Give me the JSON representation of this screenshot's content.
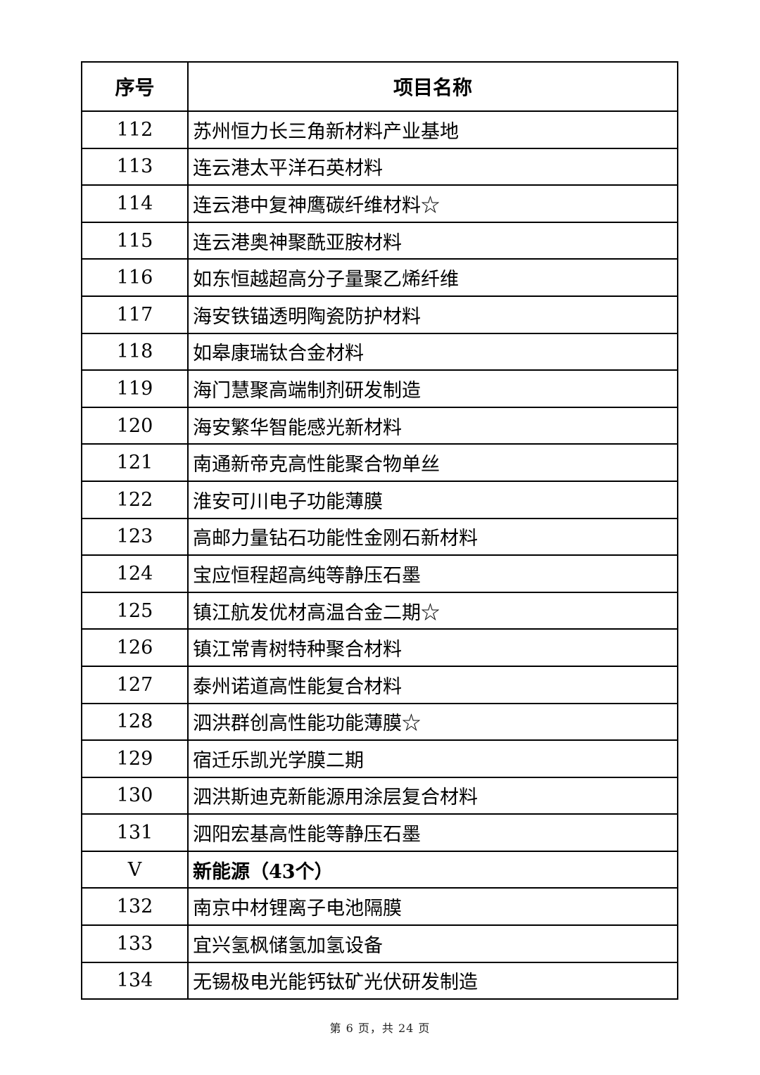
{
  "table": {
    "headers": [
      "序号",
      "项目名称"
    ],
    "rows": [
      {
        "no": "112",
        "name": "苏州恒力长三角新材料产业基地"
      },
      {
        "no": "113",
        "name": "连云港太平洋石英材料"
      },
      {
        "no": "114",
        "name": "连云港中复神鹰碳纤维材料☆"
      },
      {
        "no": "115",
        "name": "连云港奥神聚酰亚胺材料"
      },
      {
        "no": "116",
        "name": "如东恒越超高分子量聚乙烯纤维"
      },
      {
        "no": "117",
        "name": "海安铁锚透明陶瓷防护材料"
      },
      {
        "no": "118",
        "name": "如皋康瑞钛合金材料"
      },
      {
        "no": "119",
        "name": "海门慧聚高端制剂研发制造"
      },
      {
        "no": "120",
        "name": "海安繁华智能感光新材料"
      },
      {
        "no": "121",
        "name": "南通新帝克高性能聚合物单丝"
      },
      {
        "no": "122",
        "name": "淮安可川电子功能薄膜"
      },
      {
        "no": "123",
        "name": "高邮力量钻石功能性金刚石新材料"
      },
      {
        "no": "124",
        "name": "宝应恒程超高纯等静压石墨"
      },
      {
        "no": "125",
        "name": "镇江航发优材高温合金二期☆"
      },
      {
        "no": "126",
        "name": "镇江常青树特种聚合材料"
      },
      {
        "no": "127",
        "name": "泰州诺道高性能复合材料"
      },
      {
        "no": "128",
        "name": "泗洪群创高性能功能薄膜☆"
      },
      {
        "no": "129",
        "name": "宿迁乐凯光学膜二期"
      },
      {
        "no": "130",
        "name": "泗洪斯迪克新能源用涂层复合材料"
      },
      {
        "no": "131",
        "name": "泗阳宏基高性能等静压石墨"
      },
      {
        "no": "V",
        "name": "新能源（43个）",
        "section": true
      },
      {
        "no": "132",
        "name": "南京中材锂离子电池隔膜"
      },
      {
        "no": "133",
        "name": "宜兴氢枫储氢加氢设备"
      },
      {
        "no": "134",
        "name": "无锡极电光能钙钛矿光伏研发制造"
      }
    ]
  },
  "footer": {
    "page_label": "第 6 页，共 24 页"
  }
}
